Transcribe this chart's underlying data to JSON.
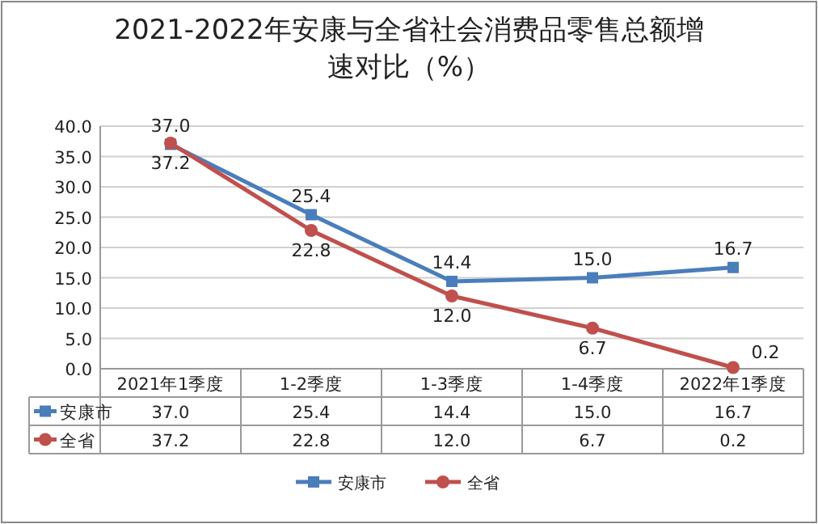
{
  "chart_data": {
    "type": "line",
    "title": "2021-2022年安康与全省社会消费品零售总额增速对比（%）",
    "categories": [
      "2021年1季度",
      "1-2季度",
      "1-3季度",
      "1-4季度",
      "2022年1季度"
    ],
    "series": [
      {
        "name": "安康市",
        "color": "#4a7ebb",
        "marker": "square",
        "values": [
          37.0,
          25.4,
          14.4,
          15.0,
          16.7
        ],
        "value_labels": [
          "37.0",
          "25.4",
          "14.4",
          "15.0",
          "16.7"
        ]
      },
      {
        "name": "全省",
        "color": "#c0504d",
        "marker": "circle",
        "values": [
          37.2,
          22.8,
          12.0,
          6.7,
          0.2
        ],
        "value_labels": [
          "37.2",
          "22.8",
          "12.0",
          "6.7",
          "0.2"
        ]
      }
    ],
    "ylim": [
      0,
      40
    ],
    "yticks": [
      {
        "value": 0,
        "label": "0.0"
      },
      {
        "value": 5,
        "label": "5.0"
      },
      {
        "value": 10,
        "label": "10.0"
      },
      {
        "value": 15,
        "label": "15.0"
      },
      {
        "value": 20,
        "label": "20.0"
      },
      {
        "value": 25,
        "label": "25.0"
      },
      {
        "value": 30,
        "label": "30.0"
      },
      {
        "value": 35,
        "label": "35.0"
      },
      {
        "value": 40,
        "label": "40.0"
      }
    ],
    "grid": "y",
    "legend": "bottom",
    "line_style": "solid"
  }
}
